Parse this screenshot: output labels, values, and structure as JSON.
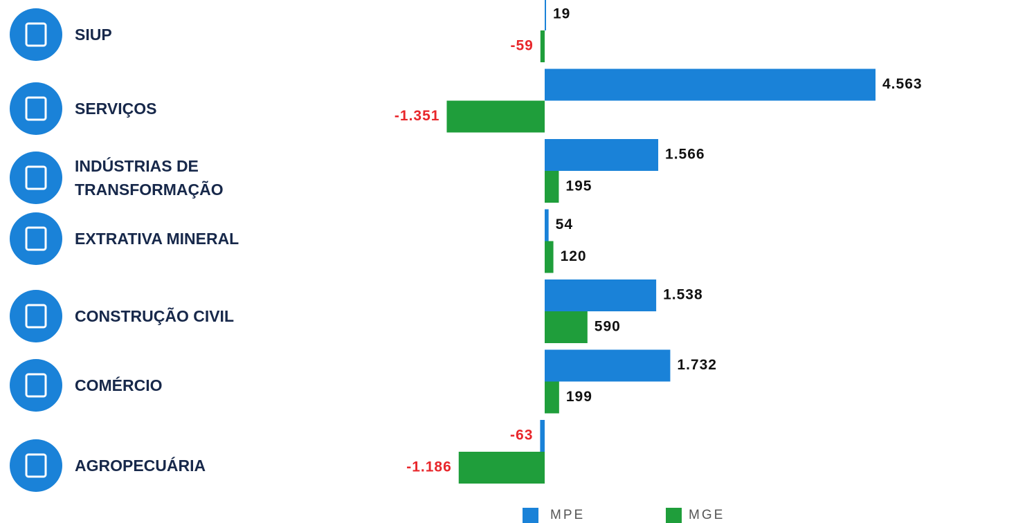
{
  "chart_data": {
    "type": "bar",
    "orientation": "horizontal",
    "categories": [
      "SIUP",
      "SERVIÇOS",
      "INDÚSTRIAS DE TRANSFORMAÇÃO",
      "EXTRATIVA MINERAL",
      "CONSTRUÇÃO CIVIL",
      "COMÉRCIO",
      "AGROPECUÁRIA"
    ],
    "series": [
      {
        "name": "MPE",
        "color": "#1a82d8",
        "values": [
          19,
          4563,
          1566,
          54,
          1538,
          1732,
          -63
        ],
        "value_labels": [
          "19",
          "4.563",
          "1.566",
          "54",
          "1.538",
          "1.732",
          "-63"
        ]
      },
      {
        "name": "MGE",
        "color": "#1f9e3b",
        "values": [
          -59,
          -1351,
          195,
          120,
          590,
          199,
          -1186
        ],
        "value_labels": [
          "-59",
          "-1.351",
          "195",
          "120",
          "590",
          "199",
          "-1.186"
        ]
      }
    ],
    "legend": "bottom"
  }
}
